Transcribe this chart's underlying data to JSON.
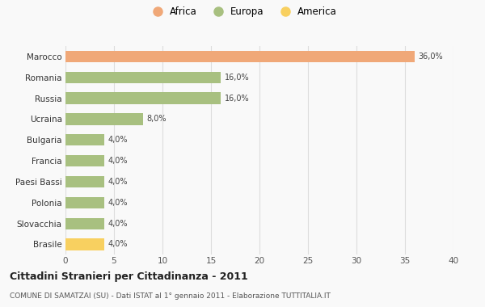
{
  "categories": [
    "Marocco",
    "Romania",
    "Russia",
    "Ucraina",
    "Bulgaria",
    "Francia",
    "Paesi Bassi",
    "Polonia",
    "Slovacchia",
    "Brasile"
  ],
  "values": [
    36.0,
    16.0,
    16.0,
    8.0,
    4.0,
    4.0,
    4.0,
    4.0,
    4.0,
    4.0
  ],
  "labels": [
    "36,0%",
    "16,0%",
    "16,0%",
    "8,0%",
    "4,0%",
    "4,0%",
    "4,0%",
    "4,0%",
    "4,0%",
    "4,0%"
  ],
  "colors": [
    "#F0A878",
    "#A8C080",
    "#A8C080",
    "#A8C080",
    "#A8C080",
    "#A8C080",
    "#A8C080",
    "#A8C080",
    "#A8C080",
    "#F8D060"
  ],
  "legend_labels": [
    "Africa",
    "Europa",
    "America"
  ],
  "legend_colors": [
    "#F0A878",
    "#A8C080",
    "#F8D060"
  ],
  "title": "Cittadini Stranieri per Cittadinanza - 2011",
  "subtitle": "COMUNE DI SAMATZAI (SU) - Dati ISTAT al 1° gennaio 2011 - Elaborazione TUTTITALIA.IT",
  "xlim": [
    0,
    40
  ],
  "xticks": [
    0,
    5,
    10,
    15,
    20,
    25,
    30,
    35,
    40
  ],
  "bg_color": "#f9f9f9",
  "grid_color": "#dddddd",
  "bar_height": 0.55,
  "figwidth": 6.0,
  "figheight": 3.8
}
